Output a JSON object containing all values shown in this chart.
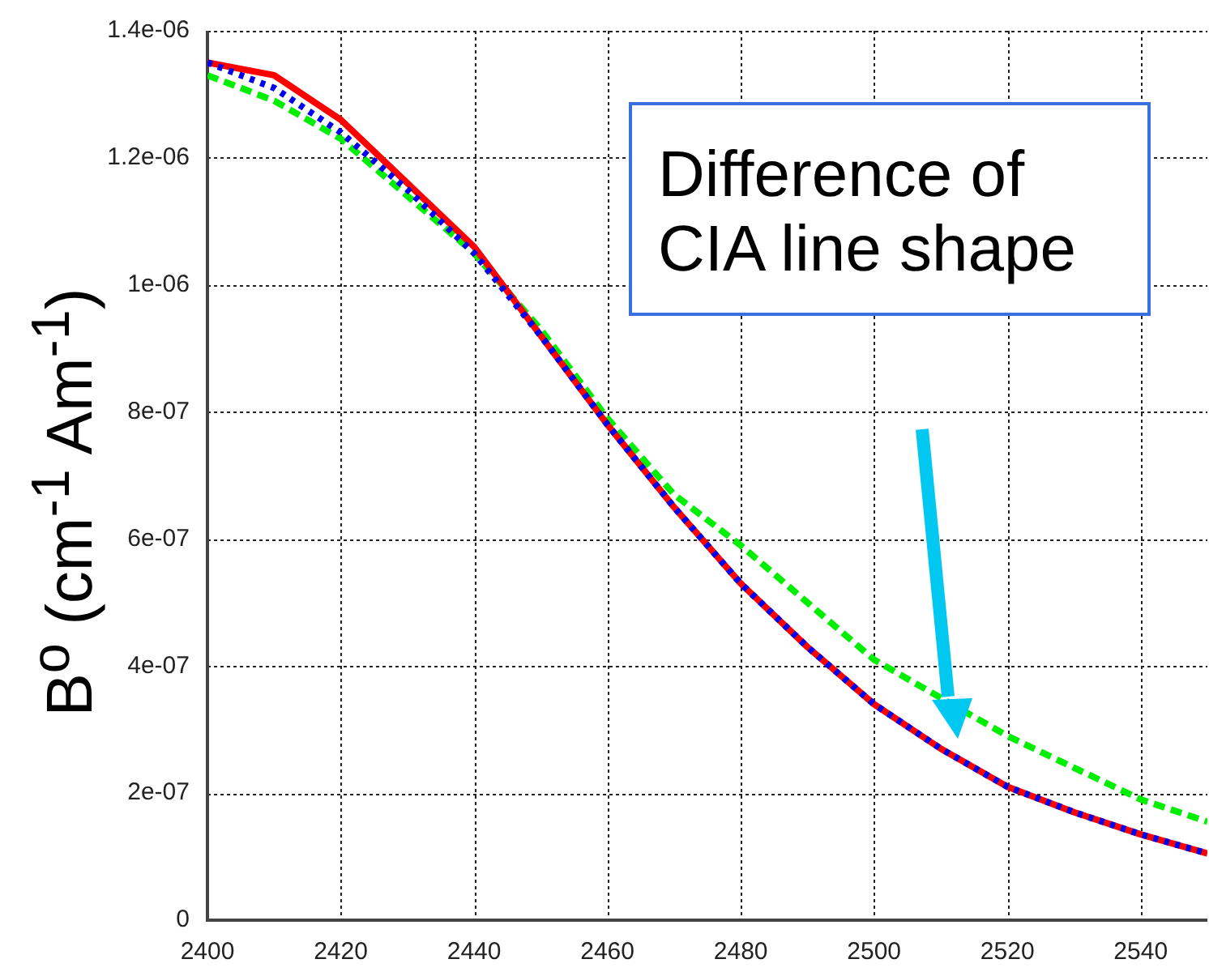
{
  "chart_data": {
    "type": "line",
    "ylabel": "B$^{o}$ (cm$^{-1}$ Am$^{-1}$)",
    "annotations": [
      "Difference of CIA line shape"
    ],
    "x": [
      2400,
      2410,
      2420,
      2430,
      2440,
      2450,
      2460,
      2470,
      2480,
      2490,
      2500,
      2510,
      2520,
      2530,
      2540,
      2550
    ],
    "series": [
      {
        "color": "#00ee00",
        "line_style": "dashed",
        "values": [
          1.33e-06,
          1.29e-06,
          1.23e-06,
          1.14e-06,
          1.05e-06,
          9.3e-07,
          7.9e-07,
          6.7e-07,
          5.9e-07,
          5e-07,
          4.1e-07,
          3.5e-07,
          2.9e-07,
          2.4e-07,
          1.9e-07,
          1.55e-07
        ]
      },
      {
        "color": "#ff0000",
        "line_style": "solid",
        "values": [
          1.35e-06,
          1.33e-06,
          1.26e-06,
          1.16e-06,
          1.06e-06,
          9.2e-07,
          7.8e-07,
          6.5e-07,
          5.3e-07,
          4.3e-07,
          3.4e-07,
          2.7e-07,
          2.1e-07,
          1.7e-07,
          1.35e-07,
          1.05e-07
        ]
      },
      {
        "color": "#0000ee",
        "line_style": "dotted",
        "values": [
          1.35e-06,
          1.31e-06,
          1.24e-06,
          1.15e-06,
          1.05e-06,
          9.2e-07,
          7.8e-07,
          6.5e-07,
          5.3e-07,
          4.3e-07,
          3.4e-07,
          2.7e-07,
          2.1e-07,
          1.7e-07,
          1.35e-07,
          1.05e-07
        ]
      }
    ],
    "xlim": [
      2400,
      2550
    ],
    "xticks": [
      2400,
      2420,
      2440,
      2460,
      2480,
      2500,
      2520,
      2540
    ],
    "ylim": [
      0,
      1.4e-06
    ],
    "yticks": [
      {
        "value": 0,
        "label": "0"
      },
      {
        "value": 2e-07,
        "label": "2e-07"
      },
      {
        "value": 4e-07,
        "label": "4e-07"
      },
      {
        "value": 6e-07,
        "label": "6e-07"
      },
      {
        "value": 8e-07,
        "label": "8e-07"
      },
      {
        "value": 1e-06,
        "label": "1e-06"
      },
      {
        "value": 1.2e-06,
        "label": "1.2e-06"
      },
      {
        "value": 1.4e-06,
        "label": "1.4e-06"
      }
    ],
    "grid": true,
    "legend": false,
    "marker": "none"
  }
}
